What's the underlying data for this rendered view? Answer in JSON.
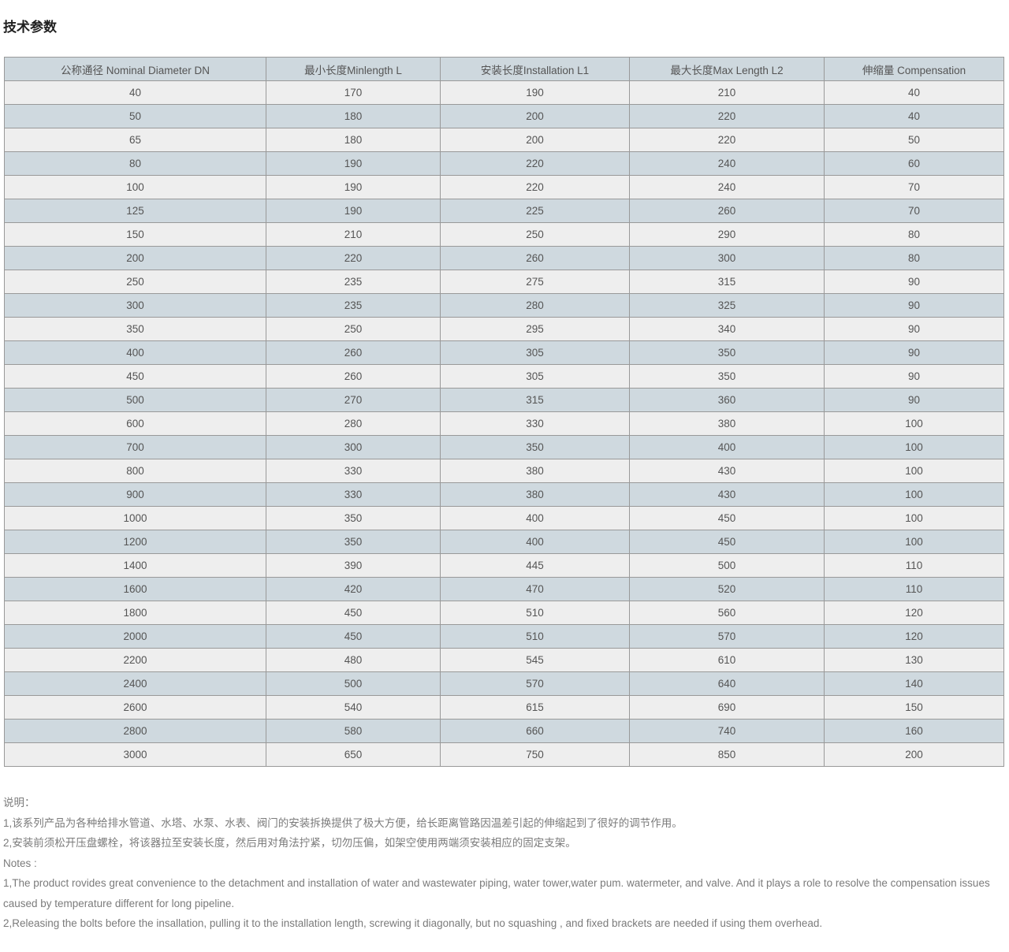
{
  "page": {
    "title": "技术参数"
  },
  "table": {
    "headers": [
      "公称通径 Nominal Diameter DN",
      "最小长度Minlength L",
      "安装长度Installation L1",
      "最大长度Max Length L2",
      "伸缩量 Compensation"
    ],
    "rows": [
      [
        "40",
        "170",
        "190",
        "210",
        "40"
      ],
      [
        "50",
        "180",
        "200",
        "220",
        "40"
      ],
      [
        "65",
        "180",
        "200",
        "220",
        "50"
      ],
      [
        "80",
        "190",
        "220",
        "240",
        "60"
      ],
      [
        "100",
        "190",
        "220",
        "240",
        "70"
      ],
      [
        "125",
        "190",
        "225",
        "260",
        "70"
      ],
      [
        "150",
        "210",
        "250",
        "290",
        "80"
      ],
      [
        "200",
        "220",
        "260",
        "300",
        "80"
      ],
      [
        "250",
        "235",
        "275",
        "315",
        "90"
      ],
      [
        "300",
        "235",
        "280",
        "325",
        "90"
      ],
      [
        "350",
        "250",
        "295",
        "340",
        "90"
      ],
      [
        "400",
        "260",
        "305",
        "350",
        "90"
      ],
      [
        "450",
        "260",
        "305",
        "350",
        "90"
      ],
      [
        "500",
        "270",
        "315",
        "360",
        "90"
      ],
      [
        "600",
        "280",
        "330",
        "380",
        "100"
      ],
      [
        "700",
        "300",
        "350",
        "400",
        "100"
      ],
      [
        "800",
        "330",
        "380",
        "430",
        "100"
      ],
      [
        "900",
        "330",
        "380",
        "430",
        "100"
      ],
      [
        "1000",
        "350",
        "400",
        "450",
        "100"
      ],
      [
        "1200",
        "350",
        "400",
        "450",
        "100"
      ],
      [
        "1400",
        "390",
        "445",
        "500",
        "110"
      ],
      [
        "1600",
        "420",
        "470",
        "520",
        "110"
      ],
      [
        "1800",
        "450",
        "510",
        "560",
        "120"
      ],
      [
        "2000",
        "450",
        "510",
        "570",
        "120"
      ],
      [
        "2200",
        "480",
        "545",
        "610",
        "130"
      ],
      [
        "2400",
        "500",
        "570",
        "640",
        "140"
      ],
      [
        "2600",
        "540",
        "615",
        "690",
        "150"
      ],
      [
        "2800",
        "580",
        "660",
        "740",
        "160"
      ],
      [
        "3000",
        "650",
        "750",
        "850",
        "200"
      ]
    ]
  },
  "notes": {
    "cn_title": "说明：",
    "cn_lines": [
      "1,该系列产品为各种给排水管道、水塔、水泵、水表、阀门的安装拆换提供了极大方便，给长距离管路因温差引起的伸缩起到了很好的调节作用。",
      "2,安装前须松开压盘螺栓，将该器拉至安装长度，然后用对角法拧紧，切勿压偏，如架空使用两端须安装相应的固定支架。"
    ],
    "en_title": "Notes :",
    "en_lines": [
      "1,The product rovides great convenience to the detachment and installation of water and wastewater piping, water tower,water pum. watermeter, and valve. And it plays a role to resolve the compensation issues caused by temperature different for long pipeline.",
      "2,Releasing the bolts before the insallation, pulling it to the installation length, screwing it diagonally, but no squashing , and fixed brackets are needed if using them overhead."
    ]
  },
  "colors": {
    "header_bg": "#ced8de",
    "row_odd_bg": "#eeeeee",
    "row_even_bg": "#cfd9df",
    "border": "#999999",
    "cell_text": "#555555",
    "note_text": "#7b7b7b",
    "title_text": "#1f1f1f"
  }
}
